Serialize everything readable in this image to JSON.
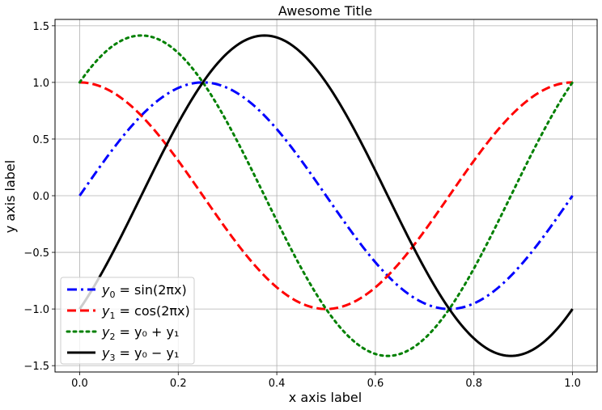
{
  "chart_data": {
    "type": "line",
    "title": "Awesome Title",
    "xlabel": "x axis label",
    "ylabel": "y axis label",
    "xlim": [
      -0.05,
      1.05
    ],
    "ylim": [
      -1.556,
      1.556
    ],
    "xticks": [
      0.0,
      0.2,
      0.4,
      0.6,
      0.8,
      1.0
    ],
    "xtick_labels": [
      "0.0",
      "0.2",
      "0.4",
      "0.6",
      "0.8",
      "1.0"
    ],
    "yticks": [
      -1.5,
      -1.0,
      -0.5,
      0.0,
      0.5,
      1.0,
      1.5
    ],
    "ytick_labels": [
      "−1.5",
      "−1.0",
      "−0.5",
      "0.0",
      "0.5",
      "1.0",
      "1.5"
    ],
    "grid": true,
    "legend_position": "lower-left",
    "x": [
      0.0,
      0.05,
      0.1,
      0.15,
      0.2,
      0.25,
      0.3,
      0.35,
      0.4,
      0.45,
      0.5,
      0.55,
      0.6,
      0.65,
      0.7,
      0.75,
      0.8,
      0.85,
      0.9,
      0.95,
      1.0
    ],
    "series": [
      {
        "name": "y0 = sin(2πx)",
        "legend": {
          "var": "y",
          "sub": "0",
          "expr": " = sin(2πx)"
        },
        "color": "#0000ff",
        "style": "dashdot",
        "values": [
          0.0,
          0.309,
          0.588,
          0.809,
          0.951,
          1.0,
          0.951,
          0.809,
          0.588,
          0.309,
          0.0,
          -0.309,
          -0.588,
          -0.809,
          -0.951,
          -1.0,
          -0.951,
          -0.809,
          -0.588,
          -0.309,
          0.0
        ]
      },
      {
        "name": "y1 = cos(2πx)",
        "legend": {
          "var": "y",
          "sub": "1",
          "expr": " = cos(2πx)"
        },
        "color": "#ff0000",
        "style": "dashed",
        "values": [
          1.0,
          0.951,
          0.809,
          0.588,
          0.309,
          0.0,
          -0.309,
          -0.588,
          -0.809,
          -0.951,
          -1.0,
          -0.951,
          -0.809,
          -0.588,
          -0.309,
          0.0,
          0.309,
          0.588,
          0.809,
          0.951,
          1.0
        ]
      },
      {
        "name": "y2 = y0 + y1",
        "legend": {
          "var": "y",
          "sub": "2",
          "expr": " = y₀ + y₁"
        },
        "color": "#008000",
        "style": "dotted",
        "values": [
          1.0,
          1.26,
          1.397,
          1.397,
          1.26,
          1.0,
          0.642,
          0.221,
          -0.221,
          -0.642,
          -1.0,
          -1.26,
          -1.397,
          -1.397,
          -1.26,
          -1.0,
          -0.642,
          -0.221,
          0.221,
          0.642,
          1.0
        ]
      },
      {
        "name": "y3 = y0 − y1",
        "legend": {
          "var": "y",
          "sub": "3",
          "expr": " = y₀ − y₁"
        },
        "color": "#000000",
        "style": "solid",
        "values": [
          -1.0,
          -0.642,
          -0.221,
          0.221,
          0.642,
          1.0,
          1.26,
          1.397,
          1.397,
          1.26,
          1.0,
          0.642,
          0.221,
          -0.221,
          -0.642,
          -1.0,
          -1.26,
          -1.397,
          -1.397,
          -1.26,
          -1.0
        ]
      }
    ]
  }
}
